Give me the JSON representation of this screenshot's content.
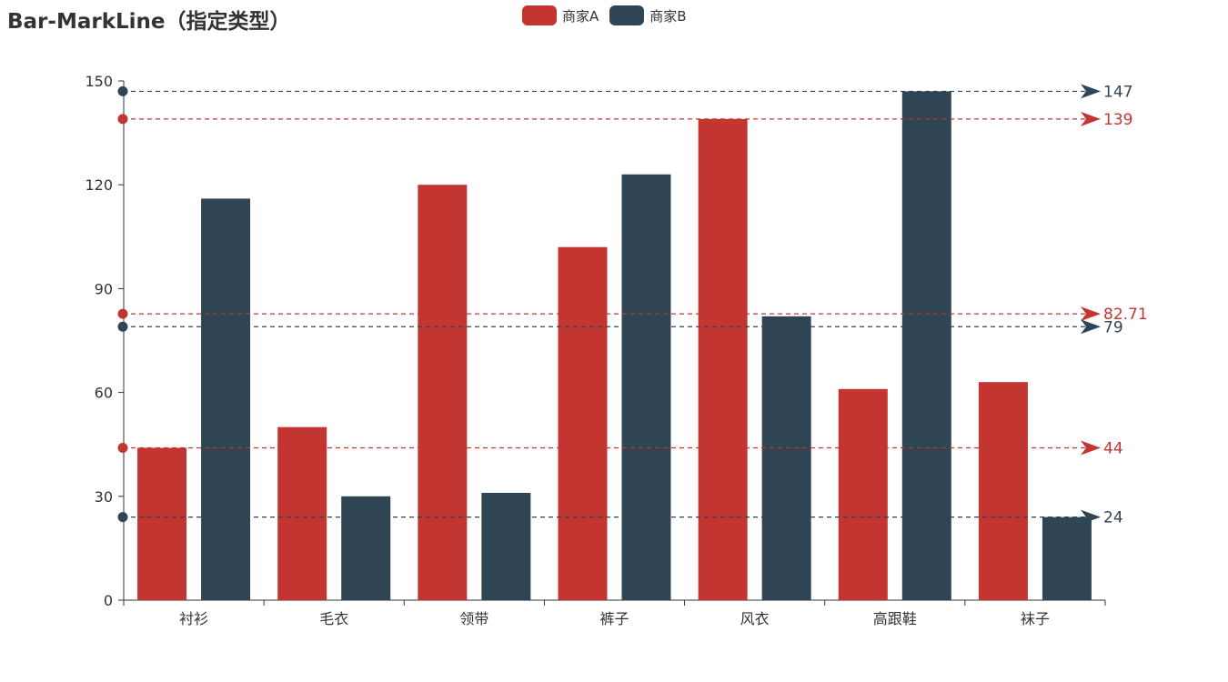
{
  "chart_data": {
    "type": "bar",
    "title": "Bar-MarkLine（指定类型）",
    "categories": [
      "衬衫",
      "毛衣",
      "领带",
      "裤子",
      "风衣",
      "高跟鞋",
      "袜子"
    ],
    "ylim": [
      0,
      150
    ],
    "yticks": [
      0,
      30,
      60,
      90,
      120,
      150
    ],
    "series": [
      {
        "name": "商家A",
        "color": "#c23531",
        "values": [
          44,
          50,
          120,
          102,
          139,
          61,
          63
        ],
        "marklines": [
          {
            "type": "min",
            "value": 44,
            "label": "44"
          },
          {
            "type": "max",
            "value": 139,
            "label": "139"
          },
          {
            "type": "average",
            "value": 82.71,
            "label": "82.71"
          }
        ]
      },
      {
        "name": "商家B",
        "color": "#2f4554",
        "values": [
          116,
          30,
          31,
          123,
          82,
          147,
          24
        ],
        "marklines": [
          {
            "type": "min",
            "value": 24,
            "label": "24"
          },
          {
            "type": "max",
            "value": 147,
            "label": "147"
          },
          {
            "type": "average",
            "value": 79,
            "label": "79"
          }
        ]
      }
    ],
    "legend_position": "top-center",
    "grid": false
  }
}
